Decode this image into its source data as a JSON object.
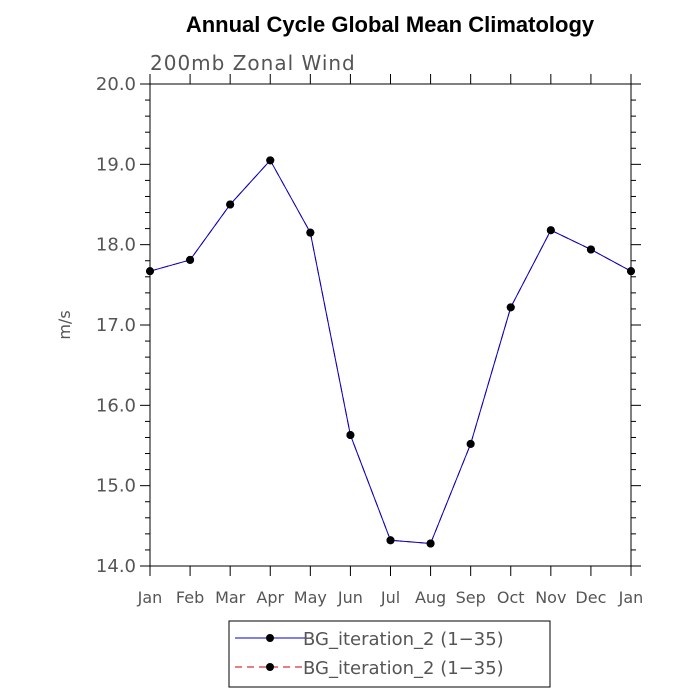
{
  "chart_data": {
    "type": "line",
    "title": "Annual Cycle Global Mean Climatology",
    "subtitle": "200mb Zonal Wind",
    "ylabel": "m/s",
    "xlabel": "",
    "categories": [
      "Jan",
      "Feb",
      "Mar",
      "Apr",
      "May",
      "Jun",
      "Jul",
      "Aug",
      "Sep",
      "Oct",
      "Nov",
      "Dec",
      "Jan"
    ],
    "ylim": [
      14.0,
      20.0
    ],
    "yticks": [
      "14.0",
      "15.0",
      "16.0",
      "17.0",
      "18.0",
      "19.0",
      "20.0"
    ],
    "grid": false,
    "legend_position": "bottom",
    "series": [
      {
        "name": "BG_iteration_2 (1−35)",
        "color": "#0000cc",
        "style": "solid",
        "values": [
          17.67,
          17.81,
          18.5,
          19.05,
          18.15,
          15.63,
          14.32,
          14.28,
          15.52,
          17.22,
          18.18,
          17.94,
          17.67
        ]
      },
      {
        "name": "BG_iteration_2 (1−35)",
        "color": "#cc0000",
        "style": "dashed",
        "values": [
          17.67,
          17.81,
          18.5,
          19.05,
          18.15,
          15.63,
          14.32,
          14.28,
          15.52,
          17.22,
          18.18,
          17.94,
          17.67
        ]
      }
    ]
  }
}
